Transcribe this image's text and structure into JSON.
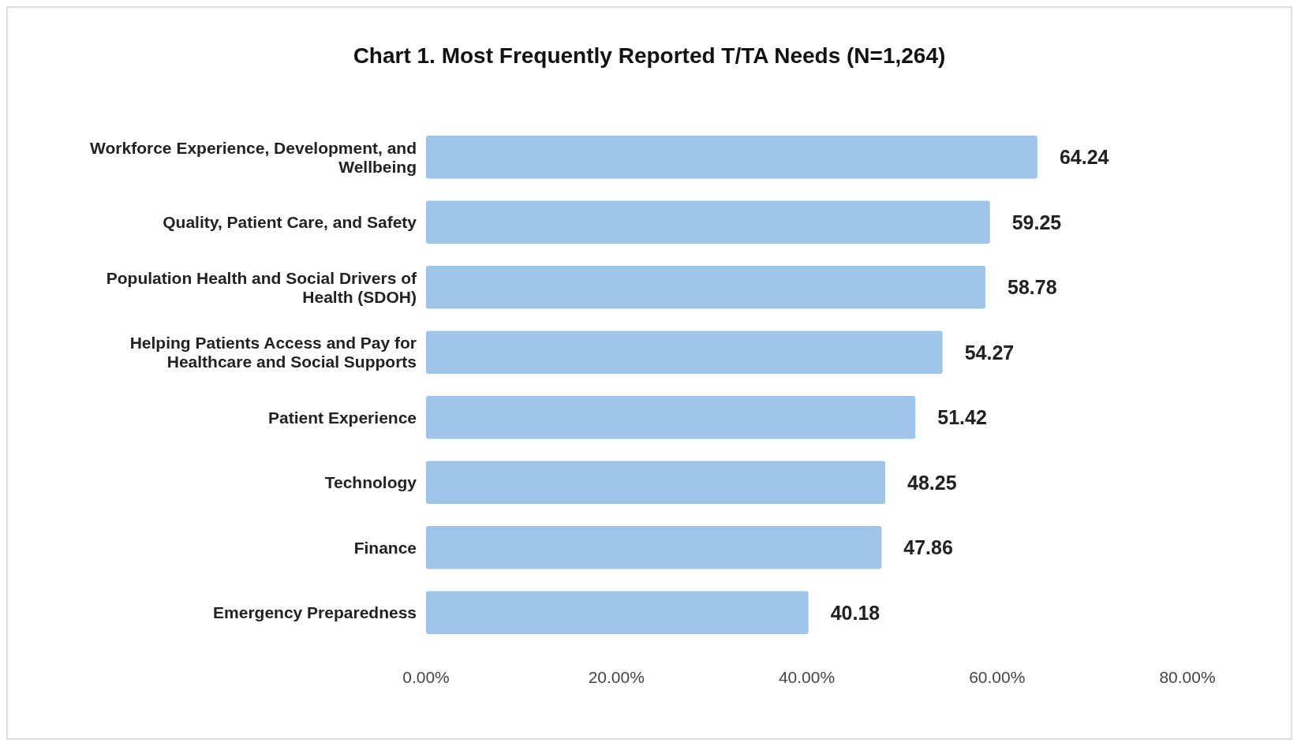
{
  "chart_data": {
    "type": "bar",
    "orientation": "horizontal",
    "title": "Chart 1. Most Frequently Reported T/TA Needs (N=1,264)",
    "categories": [
      "Workforce Experience, Development, and Wellbeing",
      "Quality, Patient Care, and Safety",
      "Population Health and Social Drivers of Health (SDOH)",
      "Helping Patients Access and Pay for Healthcare and Social Supports",
      "Patient Experience",
      "Technology",
      "Finance",
      "Emergency Preparedness"
    ],
    "values": [
      64.24,
      59.25,
      58.78,
      54.27,
      51.42,
      48.25,
      47.86,
      40.18
    ],
    "color": "#9fc5e8",
    "xlim": [
      0,
      80
    ],
    "xticks": [
      {
        "value": 0,
        "label": "0.00%"
      },
      {
        "value": 20,
        "label": "20.00%"
      },
      {
        "value": 40,
        "label": "40.00%"
      },
      {
        "value": 60,
        "label": "60.00%"
      },
      {
        "value": 80,
        "label": "80.00%"
      }
    ],
    "data_labels": true
  }
}
